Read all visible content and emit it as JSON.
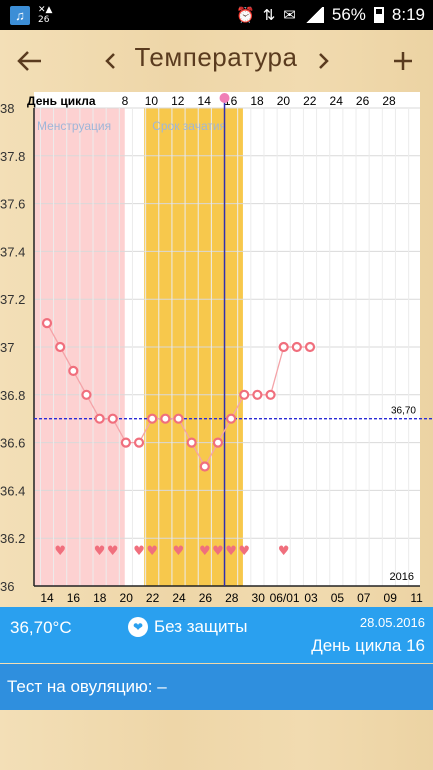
{
  "status_bar": {
    "app_icon": "music-note-icon",
    "small_text": "26",
    "battery_percent": "56%",
    "time": "8:19"
  },
  "toolbar": {
    "title": "Температура",
    "back_icon": "arrow-left-icon",
    "prev_icon": "chevron-left-icon",
    "next_icon": "chevron-right-icon",
    "add_icon": "plus-icon"
  },
  "chart_data": {
    "type": "line",
    "top_axis_label": "День цикла",
    "top_ticks": [
      "8",
      "10",
      "12",
      "14",
      "16",
      "18",
      "20",
      "22",
      "24",
      "26",
      "28"
    ],
    "bottom_ticks": [
      "14",
      "16",
      "18",
      "20",
      "22",
      "24",
      "26",
      "28",
      "30",
      "06/01",
      "03",
      "05",
      "07",
      "09",
      "11"
    ],
    "y_ticks": [
      "38",
      "37.8",
      "37.6",
      "37.4",
      "37.2",
      "37",
      "36.8",
      "36.6",
      "36.4",
      "36.2",
      "36"
    ],
    "ylim": [
      36,
      38
    ],
    "x_days": [
      0,
      1,
      2,
      3,
      4,
      5,
      6,
      7,
      8,
      9,
      10,
      11,
      12,
      13,
      14,
      15,
      16,
      17,
      18,
      19,
      20,
      21
    ],
    "temperatures": [
      37.1,
      37.0,
      36.9,
      36.8,
      36.7,
      36.7,
      36.6,
      36.6,
      36.7,
      36.7,
      36.7,
      36.6,
      36.5,
      36.6,
      36.7,
      36.8,
      36.8,
      36.8,
      37.0,
      37.0,
      37.0,
      null
    ],
    "heart_days": [
      1,
      4,
      5,
      7,
      8,
      10,
      12,
      13,
      14,
      15,
      18
    ],
    "reference_line": {
      "value": 36.7,
      "label": "36,70"
    },
    "today_day": 13.5,
    "menstruation": {
      "label": "Менструация",
      "from_day": -1,
      "to_day": 5,
      "color": "#fdd1d1"
    },
    "fertile": {
      "label": "Срок зачатия",
      "from_day": 8,
      "to_day": 14.9,
      "color": "#f7c84c"
    },
    "year_label": "2016",
    "line_color": "#f4a3a8",
    "point_color": "#f06f7d",
    "heart_color": "#f06f7d"
  },
  "info": {
    "temperature": "36,70°C",
    "protection": "Без защиты",
    "protection_icon": "heart-icon",
    "date": "28.05.2016",
    "cycle_day": "День цикла 16"
  },
  "test": {
    "label": "Тест на овуляцию: –"
  }
}
